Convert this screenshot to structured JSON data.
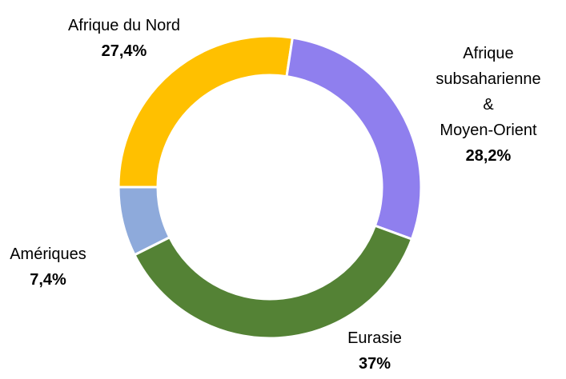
{
  "chart_data": {
    "type": "donut",
    "categories": [
      "Afrique du Nord",
      "Afrique subsaharienne &\nMoyen-Orient",
      "Eurasie",
      "Amériques"
    ],
    "values": [
      27.4,
      28.2,
      37,
      7.4
    ],
    "value_labels": [
      "27,4%",
      "28,2%",
      "37%",
      "7,4%"
    ],
    "colors": [
      "#ffc000",
      "#8f7fee",
      "#548235",
      "#8eaadb"
    ]
  }
}
